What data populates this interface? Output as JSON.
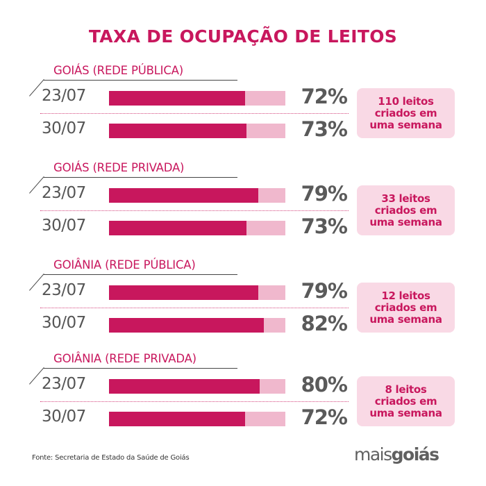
{
  "title": "TAXA DE OCUPAÇÃO DE LEITOS",
  "colors": {
    "accent": "#c8175d",
    "bar_background": "#f0b8cd",
    "note_background": "#f9d9e5",
    "value_text": "#5a5a5a"
  },
  "chart_data": {
    "type": "bar",
    "title": "TAXA DE OCUPAÇÃO DE LEITOS",
    "categories": [
      "23/07",
      "30/07"
    ],
    "ylim": [
      0,
      100
    ],
    "unit": "%",
    "series": [
      {
        "name": "GOIÁS (REDE PÚBLICA)",
        "values": [
          72,
          73
        ],
        "labels": [
          "72%",
          "73%"
        ],
        "note": [
          "110 leitos",
          "criados em",
          "uma semana"
        ]
      },
      {
        "name": "GOIÁS (REDE PRIVADA)",
        "values": [
          79,
          73
        ],
        "labels": [
          "79%",
          "73%"
        ],
        "note": [
          "33 leitos",
          "criados em",
          "uma semana"
        ]
      },
      {
        "name": "GOIÂNIA (REDE PÚBLICA)",
        "values": [
          79,
          82
        ],
        "labels": [
          "79%",
          "82%"
        ],
        "note": [
          "12 leitos",
          "criados em",
          "uma semana"
        ]
      },
      {
        "name": "GOIÂNIA (REDE PRIVADA)",
        "values": [
          80,
          72
        ],
        "labels": [
          "80%",
          "72%"
        ],
        "note": [
          "8 leitos",
          "criados em",
          "uma semana"
        ]
      }
    ]
  },
  "footer": {
    "source": "Fonte: Secretaria de Estado da Saúde de Goiás",
    "logo_part1": "mais",
    "logo_part2": "goiás"
  }
}
